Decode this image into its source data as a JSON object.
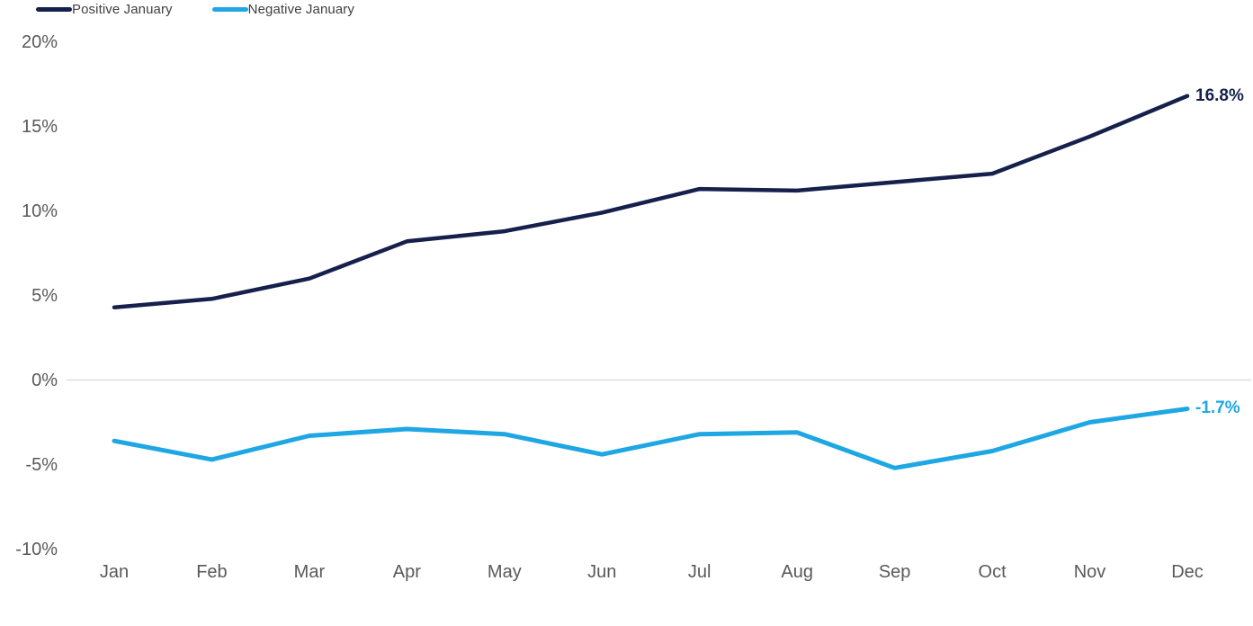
{
  "chart_data": {
    "type": "line",
    "x": [
      "Jan",
      "Feb",
      "Mar",
      "Apr",
      "May",
      "Jun",
      "Jul",
      "Aug",
      "Sep",
      "Oct",
      "Nov",
      "Dec"
    ],
    "series": [
      {
        "name": "Positive January",
        "color": "#15214C",
        "values": [
          4.3,
          4.8,
          6.0,
          8.2,
          8.8,
          9.9,
          11.3,
          11.2,
          11.7,
          12.2,
          14.4,
          16.8
        ],
        "end_label": "16.8%"
      },
      {
        "name": "Negative January",
        "color": "#1EA7E3",
        "values": [
          -3.6,
          -4.7,
          -3.3,
          -2.9,
          -3.2,
          -4.4,
          -3.2,
          -3.1,
          -5.2,
          -4.2,
          -2.5,
          -1.7
        ],
        "end_label": "-1.7%"
      }
    ],
    "y_ticks": [
      {
        "value": 20,
        "label": "20%"
      },
      {
        "value": 15,
        "label": "15%"
      },
      {
        "value": 10,
        "label": "10%"
      },
      {
        "value": 5,
        "label": "5%"
      },
      {
        "value": 0,
        "label": "0%"
      },
      {
        "value": -5,
        "label": "-5%"
      },
      {
        "value": -10,
        "label": "-10%"
      }
    ],
    "ylim": [
      -10,
      20
    ],
    "title": "",
    "xlabel": "",
    "ylabel": "",
    "grid": "single horizontal gridline at 0% only",
    "gridline_color": "#D9D9D9",
    "axis_label_color": "#595959",
    "legend_text_color": "#404040",
    "legend_position": "top-left",
    "background_color": "#FFFFFF"
  },
  "legend": {
    "items": [
      {
        "label": "Positive January"
      },
      {
        "label": "Negative January"
      }
    ]
  }
}
